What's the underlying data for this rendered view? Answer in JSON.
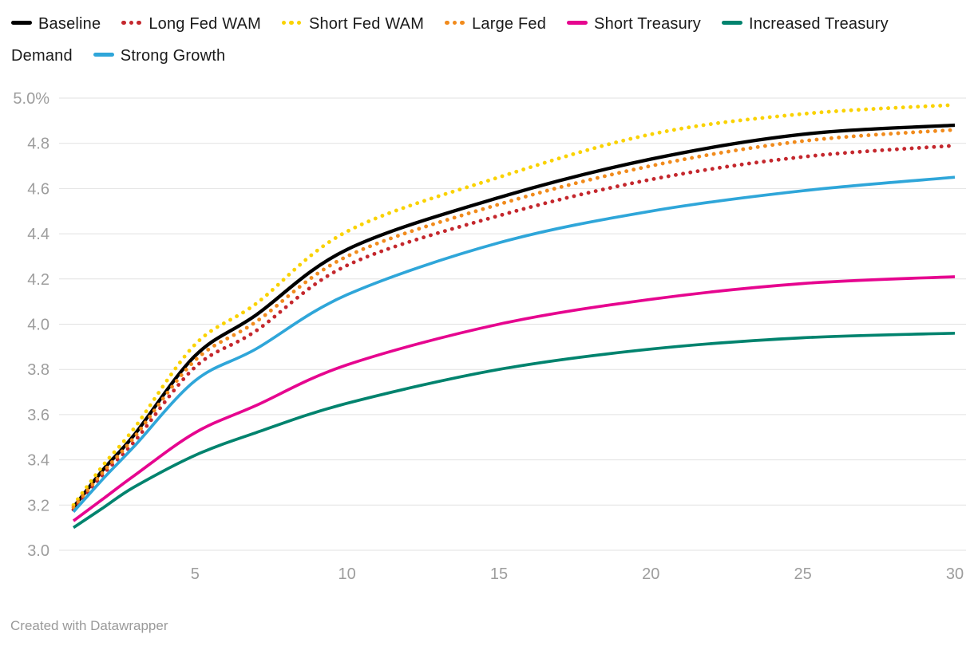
{
  "footer": {
    "text": "Created with Datawrapper"
  },
  "colors": {
    "background": "#ffffff",
    "gridline": "#e2e2e2",
    "axis_text": "#9d9d9d",
    "legend_text": "#1a1a1a",
    "footer_text": "#9a9a9a"
  },
  "chart_data": {
    "type": "line",
    "title": "",
    "xlabel": "",
    "ylabel": "",
    "xlim": [
      1,
      30
    ],
    "ylim": [
      3.0,
      5.0
    ],
    "grid": true,
    "legend_position": "top",
    "x": [
      1,
      2,
      3,
      5,
      7,
      10,
      15,
      20,
      25,
      30
    ],
    "x_ticks": [
      5,
      10,
      15,
      20,
      25,
      30
    ],
    "y_ticks": [
      {
        "value": 5.0,
        "label": "5.0%"
      },
      {
        "value": 4.8,
        "label": "4.8"
      },
      {
        "value": 4.6,
        "label": "4.6"
      },
      {
        "value": 4.4,
        "label": "4.4"
      },
      {
        "value": 4.2,
        "label": "4.2"
      },
      {
        "value": 4.0,
        "label": "4.0"
      },
      {
        "value": 3.8,
        "label": "3.8"
      },
      {
        "value": 3.6,
        "label": "3.6"
      },
      {
        "value": 3.4,
        "label": "3.4"
      },
      {
        "value": 3.2,
        "label": "3.2"
      },
      {
        "value": 3.0,
        "label": "3.0"
      }
    ],
    "series": [
      {
        "name": "Baseline",
        "color": "#000000",
        "style": "solid",
        "values": [
          3.19,
          3.36,
          3.51,
          3.86,
          4.04,
          4.33,
          4.56,
          4.73,
          4.84,
          4.88
        ]
      },
      {
        "name": "Long Fed WAM",
        "color": "#c4272d",
        "style": "dotted",
        "values": [
          3.18,
          3.34,
          3.48,
          3.81,
          3.97,
          4.26,
          4.48,
          4.64,
          4.74,
          4.79
        ]
      },
      {
        "name": "Short Fed WAM",
        "color": "#fad201",
        "style": "dotted",
        "values": [
          3.2,
          3.38,
          3.54,
          3.91,
          4.09,
          4.41,
          4.65,
          4.84,
          4.93,
          4.97
        ]
      },
      {
        "name": "Large Fed",
        "color": "#f18b1c",
        "style": "dotted",
        "values": [
          3.19,
          3.35,
          3.5,
          3.84,
          4.01,
          4.3,
          4.53,
          4.7,
          4.81,
          4.86
        ]
      },
      {
        "name": "Short Treasury",
        "color": "#e6058f",
        "style": "solid",
        "values": [
          3.13,
          3.23,
          3.33,
          3.52,
          3.64,
          3.82,
          4.0,
          4.11,
          4.18,
          4.21
        ]
      },
      {
        "name": "Increased Treasury Demand",
        "color": "#00836e",
        "style": "solid",
        "values": [
          3.1,
          3.19,
          3.28,
          3.42,
          3.52,
          3.65,
          3.8,
          3.89,
          3.94,
          3.96
        ]
      },
      {
        "name": "Strong Growth",
        "color": "#2fa6d9",
        "style": "solid",
        "values": [
          3.17,
          3.32,
          3.46,
          3.75,
          3.89,
          4.13,
          4.36,
          4.5,
          4.59,
          4.65
        ]
      }
    ]
  }
}
